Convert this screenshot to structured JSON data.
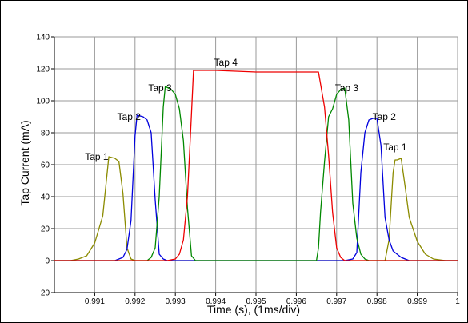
{
  "chart_data": {
    "type": "line",
    "xlabel": "Time (s), (1ms/div)",
    "ylabel": "Tap Current (mA)",
    "xlim": [
      0.99,
      1.0
    ],
    "ylim": [
      -20,
      140
    ],
    "x_ticks": [
      0.991,
      0.992,
      0.993,
      0.994,
      0.995,
      0.996,
      0.997,
      0.998,
      0.999,
      1
    ],
    "x_tick_labels": [
      "0.991",
      "0.992",
      "0.993",
      "0.994",
      "0.995",
      "0.996",
      "0.997",
      "0.998",
      "0.999",
      "1"
    ],
    "y_ticks": [
      -20,
      0,
      20,
      40,
      60,
      80,
      100,
      120,
      140
    ],
    "y_tick_labels": [
      "-20",
      "0",
      "20",
      "40",
      "60",
      "80",
      "100",
      "120",
      "140"
    ],
    "grid": true,
    "series": [
      {
        "name": "Tap 1",
        "color": "#8B8B00",
        "points": [
          [
            0.99,
            0
          ],
          [
            0.9904,
            0
          ],
          [
            0.9906,
            1
          ],
          [
            0.9908,
            3
          ],
          [
            0.991,
            11
          ],
          [
            0.9912,
            28
          ],
          [
            0.99135,
            65
          ],
          [
            0.9915,
            64
          ],
          [
            0.9916,
            62
          ],
          [
            0.9917,
            42
          ],
          [
            0.9918,
            8
          ],
          [
            0.9919,
            1
          ],
          [
            0.992,
            0
          ],
          [
            0.9978,
            0
          ],
          [
            0.9982,
            0
          ],
          [
            0.9983,
            13
          ],
          [
            0.9984,
            55
          ],
          [
            0.99845,
            63
          ],
          [
            0.9985,
            63
          ],
          [
            0.9986,
            64
          ],
          [
            0.9987,
            46
          ],
          [
            0.9988,
            27
          ],
          [
            0.999,
            12
          ],
          [
            0.9992,
            4
          ],
          [
            0.9994,
            1
          ],
          [
            0.9997,
            0
          ],
          [
            1.0,
            0
          ]
        ]
      },
      {
        "name": "Tap 2",
        "color": "#0000DD",
        "points": [
          [
            0.99,
            0
          ],
          [
            0.9913,
            0
          ],
          [
            0.9915,
            0
          ],
          [
            0.9917,
            2
          ],
          [
            0.9918,
            7
          ],
          [
            0.9919,
            25
          ],
          [
            0.992,
            78
          ],
          [
            0.99205,
            91
          ],
          [
            0.9922,
            90
          ],
          [
            0.9923,
            88
          ],
          [
            0.9924,
            80
          ],
          [
            0.9925,
            38
          ],
          [
            0.9926,
            4
          ],
          [
            0.9927,
            1
          ],
          [
            0.9928,
            0
          ],
          [
            0.997,
            0
          ],
          [
            0.9972,
            0
          ],
          [
            0.9974,
            1
          ],
          [
            0.9975,
            5
          ],
          [
            0.9976,
            55
          ],
          [
            0.9977,
            80
          ],
          [
            0.9978,
            88
          ],
          [
            0.9979,
            89
          ],
          [
            0.998,
            89
          ],
          [
            0.9981,
            72
          ],
          [
            0.9982,
            27
          ],
          [
            0.9983,
            13
          ],
          [
            0.9984,
            6
          ],
          [
            0.9986,
            2
          ],
          [
            0.9988,
            0
          ],
          [
            1.0,
            0
          ]
        ]
      },
      {
        "name": "Tap 3",
        "color": "#008800",
        "points": [
          [
            0.99,
            0
          ],
          [
            0.992,
            0
          ],
          [
            0.9923,
            0
          ],
          [
            0.9924,
            2
          ],
          [
            0.9925,
            8
          ],
          [
            0.9926,
            40
          ],
          [
            0.9927,
            96
          ],
          [
            0.99275,
            109
          ],
          [
            0.9929,
            107
          ],
          [
            0.993,
            104
          ],
          [
            0.9931,
            95
          ],
          [
            0.9932,
            75
          ],
          [
            0.9933,
            33
          ],
          [
            0.9934,
            3
          ],
          [
            0.9935,
            0
          ],
          [
            0.9965,
            0
          ],
          [
            0.99655,
            8
          ],
          [
            0.9966,
            30
          ],
          [
            0.9967,
            62
          ],
          [
            0.9968,
            90
          ],
          [
            0.9969,
            95
          ],
          [
            0.997,
            104
          ],
          [
            0.9971,
            107
          ],
          [
            0.9972,
            108
          ],
          [
            0.9973,
            88
          ],
          [
            0.9974,
            36
          ],
          [
            0.9975,
            14
          ],
          [
            0.9976,
            4
          ],
          [
            0.9977,
            1
          ],
          [
            0.9978,
            0
          ],
          [
            1.0,
            0
          ]
        ]
      },
      {
        "name": "Tap 4",
        "color": "#EE0000",
        "points": [
          [
            0.99,
            0
          ],
          [
            0.9928,
            0
          ],
          [
            0.993,
            1
          ],
          [
            0.9931,
            4
          ],
          [
            0.9932,
            13
          ],
          [
            0.9933,
            40
          ],
          [
            0.9934,
            92
          ],
          [
            0.99345,
            119
          ],
          [
            0.994,
            119
          ],
          [
            0.995,
            118
          ],
          [
            0.996,
            118
          ],
          [
            0.99655,
            118
          ],
          [
            0.9967,
            96
          ],
          [
            0.9968,
            66
          ],
          [
            0.9969,
            30
          ],
          [
            0.997,
            8
          ],
          [
            0.9971,
            2
          ],
          [
            0.9972,
            0
          ],
          [
            1.0,
            0
          ]
        ]
      }
    ],
    "annotations": [
      {
        "text": "Tap 1",
        "x": 0.99105,
        "y": 63
      },
      {
        "text": "Tap 2",
        "x": 0.99185,
        "y": 88
      },
      {
        "text": "Tap 3",
        "x": 0.99262,
        "y": 106
      },
      {
        "text": "Tap 4",
        "x": 0.99425,
        "y": 122
      },
      {
        "text": "Tap 3",
        "x": 0.99725,
        "y": 106
      },
      {
        "text": "Tap 2",
        "x": 0.99818,
        "y": 88
      },
      {
        "text": "Tap 1",
        "x": 0.99845,
        "y": 69
      }
    ]
  }
}
